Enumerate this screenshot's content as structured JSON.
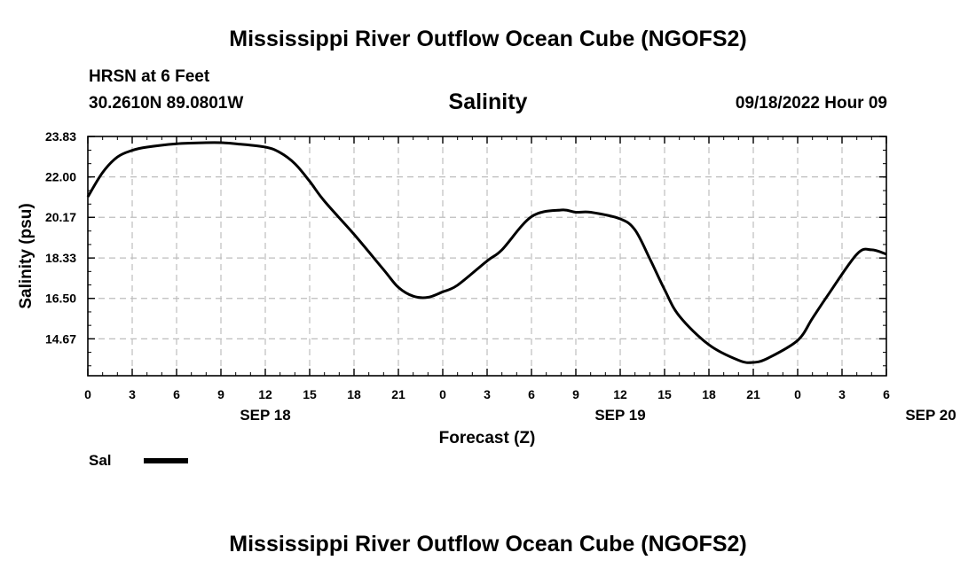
{
  "page": {
    "title": "Mississippi River Outflow Ocean Cube (NGOFS2)",
    "footer_title": "Mississippi River Outflow Ocean Cube (NGOFS2)",
    "station": "HRSN at 6 Feet",
    "coordinates": "30.2610N  89.0801W",
    "datetime": "09/18/2022 Hour 09"
  },
  "chart_data": {
    "type": "line",
    "title": "Salinity",
    "xlabel": "Forecast (Z)",
    "ylabel": "Salinity (psu)",
    "ylim": [
      13.0,
      23.83
    ],
    "yticks": [
      "23.83",
      "22.00",
      "20.17",
      "18.33",
      "16.50",
      "14.67"
    ],
    "xticks": [
      "0",
      "3",
      "6",
      "9",
      "12",
      "15",
      "18",
      "21",
      "0",
      "3",
      "6",
      "9",
      "12",
      "15",
      "18",
      "21",
      "0",
      "3",
      "6"
    ],
    "day_labels": [
      {
        "label": "SEP 18",
        "hour": 12
      },
      {
        "label": "SEP 19",
        "hour": 36
      },
      {
        "label": "SEP 20",
        "hour": 57
      }
    ],
    "xlim_hours": [
      0,
      54
    ],
    "grid": true,
    "legend_position": "bottom-left",
    "series": [
      {
        "name": "Sal",
        "color": "#000000",
        "x_hours": [
          0,
          1,
          2,
          3,
          4,
          6,
          8,
          9,
          10,
          12,
          13,
          14,
          15,
          16,
          18,
          20,
          21,
          22,
          23,
          24,
          25,
          27,
          28,
          30,
          32,
          33,
          34,
          36,
          37,
          38,
          39,
          40,
          42,
          44,
          45,
          46,
          48,
          49,
          50,
          52,
          53,
          54
        ],
        "values": [
          21.1,
          22.2,
          22.9,
          23.2,
          23.35,
          23.5,
          23.55,
          23.55,
          23.5,
          23.35,
          23.1,
          22.6,
          21.8,
          20.9,
          19.4,
          17.8,
          17.0,
          16.6,
          16.55,
          16.8,
          17.1,
          18.2,
          18.7,
          20.2,
          20.5,
          20.4,
          20.4,
          20.1,
          19.6,
          18.3,
          16.9,
          15.7,
          14.4,
          13.7,
          13.6,
          13.8,
          14.6,
          15.6,
          16.6,
          18.5,
          18.7,
          18.5
        ]
      }
    ]
  }
}
